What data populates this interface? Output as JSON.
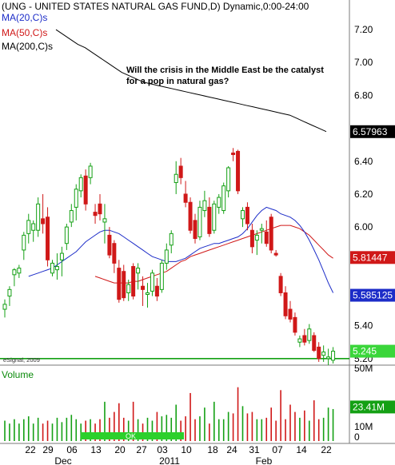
{
  "chart_data": {
    "type": "candlestick",
    "title": "(UNG - UNITED STATES NATURAL GAS FUND,D) Dynamic,0:00-24:00",
    "annotation": "Will the crisis in the Middle East be the catalyst for a pop in natural gas?",
    "credit": "eSignal, 2009",
    "y_range": [
      5.17,
      7.38
    ],
    "y_ticks": [
      "7.20",
      "7.00",
      "6.80",
      "6.40",
      "6.20",
      "6.00",
      "5.40",
      "5.20"
    ],
    "ma_labels": [
      {
        "text": "MA(20,C)s",
        "color": "#1c2cc8"
      },
      {
        "text": "MA(50,C)s",
        "color": "#d01818"
      },
      {
        "text": "MA(200,C)s",
        "color": "#000000"
      }
    ],
    "value_tags": [
      {
        "label": "6.57963",
        "value": 6.5796,
        "bg": "#000000",
        "fg": "#ffffff"
      },
      {
        "label": "5.81447",
        "value": 5.8145,
        "bg": "#d01818",
        "fg": "#ffffff"
      },
      {
        "label": "5.585125",
        "value": 5.5851,
        "bg": "#1c2cc8",
        "fg": "#ffffff"
      },
      {
        "label": "5.245",
        "value": 5.245,
        "bg": "#3ad63a",
        "fg": "#ffffff"
      }
    ],
    "support_level": 5.2,
    "x_day_labels": [
      "22",
      "29",
      "06",
      "13",
      "20",
      "27",
      "03",
      "10",
      "18",
      "24",
      "31",
      "07",
      "14",
      "22"
    ],
    "x_month_labels": [
      "Dec",
      "2011",
      "Feb"
    ],
    "volume_label": "Volume",
    "volume_ticks": [
      "50M",
      "10M",
      "0"
    ],
    "volume_range": [
      0,
      60
    ],
    "volume_tag": "23.41M",
    "ok_label": "OK",
    "candles": [
      {
        "o": 5.5,
        "h": 5.56,
        "l": 5.45,
        "c": 5.53
      },
      {
        "o": 5.58,
        "h": 5.64,
        "l": 5.52,
        "c": 5.62
      },
      {
        "o": 5.71,
        "h": 5.75,
        "l": 5.64,
        "c": 5.74
      },
      {
        "o": 5.72,
        "h": 5.77,
        "l": 5.69,
        "c": 5.75
      },
      {
        "o": 5.86,
        "h": 5.97,
        "l": 5.8,
        "c": 5.95
      },
      {
        "o": 5.96,
        "h": 6.08,
        "l": 5.9,
        "c": 6.04
      },
      {
        "o": 5.98,
        "h": 6.04,
        "l": 5.91,
        "c": 6.02
      },
      {
        "o": 5.98,
        "h": 6.18,
        "l": 5.94,
        "c": 6.14
      },
      {
        "o": 6.05,
        "h": 6.2,
        "l": 5.96,
        "c": 6.02
      },
      {
        "o": 6.06,
        "h": 6.12,
        "l": 5.76,
        "c": 5.8
      },
      {
        "o": 5.72,
        "h": 5.8,
        "l": 5.7,
        "c": 5.78
      },
      {
        "o": 5.74,
        "h": 5.84,
        "l": 5.68,
        "c": 5.76
      },
      {
        "o": 5.8,
        "h": 5.88,
        "l": 5.7,
        "c": 5.84
      },
      {
        "o": 5.9,
        "h": 6.02,
        "l": 5.86,
        "c": 6.0
      },
      {
        "o": 6.03,
        "h": 6.14,
        "l": 6.0,
        "c": 6.1
      },
      {
        "o": 6.12,
        "h": 6.26,
        "l": 6.04,
        "c": 6.23
      },
      {
        "o": 6.22,
        "h": 6.32,
        "l": 6.18,
        "c": 6.3
      },
      {
        "o": 6.31,
        "h": 6.35,
        "l": 6.1,
        "c": 6.14
      },
      {
        "o": 6.3,
        "h": 6.39,
        "l": 6.26,
        "c": 6.37
      },
      {
        "o": 6.09,
        "h": 6.14,
        "l": 6.02,
        "c": 6.07
      },
      {
        "o": 6.14,
        "h": 6.2,
        "l": 6.04,
        "c": 6.08
      },
      {
        "o": 6.03,
        "h": 6.14,
        "l": 5.9,
        "c": 6.05
      },
      {
        "o": 5.95,
        "h": 6.0,
        "l": 5.81,
        "c": 5.83
      },
      {
        "o": 5.9,
        "h": 5.92,
        "l": 5.72,
        "c": 5.78
      },
      {
        "o": 5.75,
        "h": 5.8,
        "l": 5.54,
        "c": 5.56
      },
      {
        "o": 5.73,
        "h": 5.77,
        "l": 5.55,
        "c": 5.57
      },
      {
        "o": 5.6,
        "h": 5.68,
        "l": 5.55,
        "c": 5.65
      },
      {
        "o": 5.76,
        "h": 5.78,
        "l": 5.56,
        "c": 5.58
      },
      {
        "o": 5.72,
        "h": 5.78,
        "l": 5.62,
        "c": 5.75
      },
      {
        "o": 5.64,
        "h": 5.7,
        "l": 5.52,
        "c": 5.62
      },
      {
        "o": 5.59,
        "h": 5.66,
        "l": 5.51,
        "c": 5.6
      },
      {
        "o": 5.61,
        "h": 5.74,
        "l": 5.58,
        "c": 5.72
      },
      {
        "o": 5.64,
        "h": 5.69,
        "l": 5.55,
        "c": 5.58
      },
      {
        "o": 5.62,
        "h": 5.8,
        "l": 5.6,
        "c": 5.78
      },
      {
        "o": 5.78,
        "h": 5.9,
        "l": 5.74,
        "c": 5.86
      },
      {
        "o": 5.89,
        "h": 5.98,
        "l": 5.84,
        "c": 5.96
      },
      {
        "o": 6.27,
        "h": 6.4,
        "l": 6.2,
        "c": 6.32
      },
      {
        "o": 6.37,
        "h": 6.42,
        "l": 6.26,
        "c": 6.3
      },
      {
        "o": 6.2,
        "h": 6.28,
        "l": 6.12,
        "c": 6.15
      },
      {
        "o": 6.15,
        "h": 6.18,
        "l": 5.96,
        "c": 5.98
      },
      {
        "o": 6.04,
        "h": 6.08,
        "l": 5.9,
        "c": 5.93
      },
      {
        "o": 5.94,
        "h": 6.16,
        "l": 5.92,
        "c": 6.12
      },
      {
        "o": 6.1,
        "h": 6.22,
        "l": 6.06,
        "c": 6.16
      },
      {
        "o": 6.12,
        "h": 6.18,
        "l": 5.94,
        "c": 5.96
      },
      {
        "o": 5.98,
        "h": 6.16,
        "l": 5.96,
        "c": 6.14
      },
      {
        "o": 6.12,
        "h": 6.2,
        "l": 6.08,
        "c": 6.18
      },
      {
        "o": 6.1,
        "h": 6.27,
        "l": 6.08,
        "c": 6.25
      },
      {
        "o": 6.22,
        "h": 6.37,
        "l": 6.18,
        "c": 6.36
      },
      {
        "o": 6.45,
        "h": 6.48,
        "l": 6.4,
        "c": 6.44
      },
      {
        "o": 6.46,
        "h": 6.47,
        "l": 6.2,
        "c": 6.22
      },
      {
        "o": 6.05,
        "h": 6.12,
        "l": 6.0,
        "c": 6.1
      },
      {
        "o": 6.12,
        "h": 6.15,
        "l": 5.98,
        "c": 6.02
      },
      {
        "o": 5.98,
        "h": 6.02,
        "l": 5.84,
        "c": 5.88
      },
      {
        "o": 5.92,
        "h": 5.98,
        "l": 5.83,
        "c": 5.95
      },
      {
        "o": 5.98,
        "h": 6.02,
        "l": 5.9,
        "c": 5.99
      },
      {
        "o": 5.97,
        "h": 6.04,
        "l": 5.88,
        "c": 5.9
      },
      {
        "o": 6.06,
        "h": 6.08,
        "l": 5.84,
        "c": 5.86
      },
      {
        "o": 5.84,
        "h": 5.86,
        "l": 5.82,
        "c": 5.83
      },
      {
        "o": 5.7,
        "h": 5.72,
        "l": 5.58,
        "c": 5.6
      },
      {
        "o": 5.6,
        "h": 5.64,
        "l": 5.44,
        "c": 5.46
      },
      {
        "o": 5.5,
        "h": 5.55,
        "l": 5.42,
        "c": 5.44
      },
      {
        "o": 5.45,
        "h": 5.48,
        "l": 5.34,
        "c": 5.36
      },
      {
        "o": 5.3,
        "h": 5.34,
        "l": 5.27,
        "c": 5.32
      },
      {
        "o": 5.34,
        "h": 5.38,
        "l": 5.28,
        "c": 5.3
      },
      {
        "o": 5.31,
        "h": 5.41,
        "l": 5.29,
        "c": 5.38
      },
      {
        "o": 5.34,
        "h": 5.36,
        "l": 5.24,
        "c": 5.25
      },
      {
        "o": 5.27,
        "h": 5.3,
        "l": 5.18,
        "c": 5.2
      },
      {
        "o": 5.22,
        "h": 5.28,
        "l": 5.18,
        "c": 5.24
      },
      {
        "o": 5.2,
        "h": 5.26,
        "l": 5.16,
        "c": 5.21
      },
      {
        "o": 5.19,
        "h": 5.27,
        "l": 5.17,
        "c": 5.245
      }
    ],
    "volumes": [
      14,
      12,
      15,
      12,
      15,
      17,
      12,
      16,
      12,
      14,
      12,
      16,
      13,
      16,
      18,
      15,
      12,
      14,
      15,
      12,
      15,
      27,
      16,
      20,
      26,
      16,
      14,
      27,
      15,
      12,
      16,
      14,
      20,
      17,
      18,
      16,
      25,
      14,
      17,
      33,
      15,
      17,
      23,
      12,
      27,
      15,
      15,
      20,
      19,
      37,
      24,
      19,
      20,
      15,
      15,
      16,
      23,
      14,
      35,
      15,
      25,
      20,
      16,
      21,
      14,
      28,
      15,
      16,
      23,
      22
    ],
    "ma20": [
      5.7,
      5.71,
      5.72,
      5.73,
      5.74,
      5.75,
      5.77,
      5.79,
      5.81,
      5.83,
      5.85,
      5.88,
      5.91,
      5.93,
      5.95,
      5.97,
      5.98,
      5.98,
      5.97,
      5.96,
      5.94,
      5.92,
      5.9,
      5.88,
      5.86,
      5.84,
      5.82,
      5.81,
      5.8,
      5.79,
      5.79,
      5.79,
      5.8,
      5.81,
      5.83,
      5.85,
      5.87,
      5.88,
      5.89,
      5.9,
      5.9,
      5.91,
      5.92,
      5.93,
      5.94,
      5.96,
      5.99,
      6.03,
      6.07,
      6.1,
      6.12,
      6.11,
      6.1,
      6.08,
      6.07,
      6.06,
      6.04,
      6.01,
      5.97,
      5.92,
      5.86,
      5.8,
      5.73,
      5.66,
      5.6
    ],
    "ma50": [
      5.7,
      5.69,
      5.68,
      5.67,
      5.66,
      5.66,
      5.66,
      5.66,
      5.67,
      5.67,
      5.68,
      5.69,
      5.7,
      5.71,
      5.72,
      5.73,
      5.75,
      5.77,
      5.79,
      5.8,
      5.82,
      5.83,
      5.84,
      5.85,
      5.86,
      5.87,
      5.88,
      5.89,
      5.9,
      5.91,
      5.92,
      5.93,
      5.94,
      5.95,
      5.96,
      5.97,
      5.98,
      5.99,
      6.0,
      6.01,
      6.01,
      6.01,
      6.0,
      5.99,
      5.97,
      5.95,
      5.92,
      5.89,
      5.86,
      5.83,
      5.81
    ],
    "ma200": [
      7.2,
      7.17,
      7.14,
      7.11,
      7.09,
      7.06,
      7.03,
      7.0,
      6.97,
      6.94,
      6.92,
      6.9,
      6.88,
      6.87,
      6.86,
      6.85,
      6.84,
      6.83,
      6.82,
      6.81,
      6.8,
      6.79,
      6.78,
      6.77,
      6.76,
      6.75,
      6.74,
      6.73,
      6.72,
      6.71,
      6.7,
      6.69,
      6.68,
      6.66,
      6.64,
      6.62,
      6.6,
      6.58
    ]
  }
}
